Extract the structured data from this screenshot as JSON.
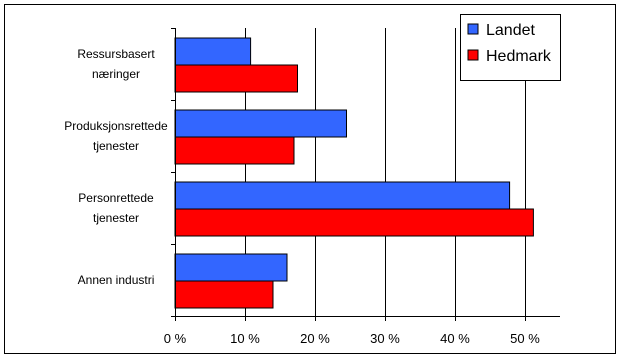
{
  "chart_data": {
    "type": "bar",
    "orientation": "horizontal",
    "categories": [
      [
        "Ressursbasert",
        "næringer"
      ],
      [
        "Produksjonsrettede",
        "tjenester"
      ],
      [
        "Personrettede",
        "tjenester"
      ],
      [
        "Annen industri"
      ]
    ],
    "series": [
      {
        "name": "Landet",
        "values": [
          10.8,
          24.5,
          47.8,
          16.0
        ],
        "color": "#3366ff"
      },
      {
        "name": "Hedmark",
        "values": [
          17.5,
          17.0,
          51.2,
          14.0
        ],
        "color": "#ff0000"
      }
    ],
    "xlim": [
      0,
      55
    ],
    "xticks": [
      0,
      10,
      20,
      30,
      40,
      50
    ],
    "xtick_labels": [
      "0 %",
      "10 %",
      "20 %",
      "30 %",
      "40 %",
      "50 %"
    ],
    "grid": "vertical",
    "legend_position": "top-right",
    "title": "",
    "xlabel": "",
    "ylabel": ""
  }
}
